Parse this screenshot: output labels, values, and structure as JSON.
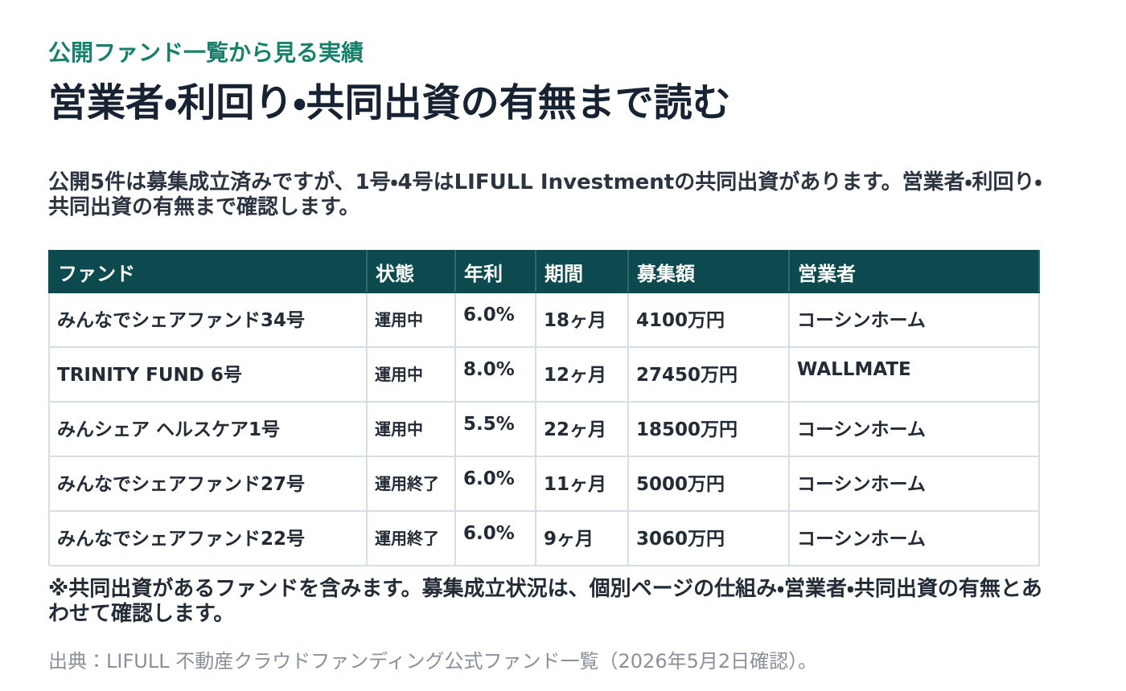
{
  "header": {
    "eyebrow": "公開ファンド一覧から見る実績",
    "title": "営業者・利回り・共同出資の有無まで読む"
  },
  "lead": "公開5件は募集成立済みですが、1号・4号はLIFULL Investmentの共同出資があります。営業者・利回り・共同出資の有無まで確認します。",
  "table": {
    "headers": [
      "ファンド",
      "状態",
      "年利",
      "期間",
      "募集額",
      "営業者"
    ],
    "rows": [
      [
        "みんなでシェアファンド34号",
        "運用中",
        "6.0%",
        "18ヶ月",
        "4100万円",
        "コーシンホーム"
      ],
      [
        "TRINITY FUND 6号",
        "運用中",
        "8.0%",
        "12ヶ月",
        "27450万円",
        "WALLMATE"
      ],
      [
        "みんシェア ヘルスケア1号",
        "運用中",
        "5.5%",
        "22ヶ月",
        "18500万円",
        "コーシンホーム"
      ],
      [
        "みんなでシェアファンド27号",
        "運用終了",
        "6.0%",
        "11ヶ月",
        "5000万円",
        "コーシンホーム"
      ],
      [
        "みんなでシェアファンド22号",
        "運用終了",
        "6.0%",
        "9ヶ月",
        "3060万円",
        "コーシンホーム"
      ]
    ]
  },
  "note": "※共同出資があるファンドを含みます。募集成立状況は、個別ページの仕組み・営業者・共同出資の有無とあわせて確認します。",
  "source": "出典：LIFULL 不動産クラウドファンディング公式ファンド一覧（2026年5月2日確認）。"
}
